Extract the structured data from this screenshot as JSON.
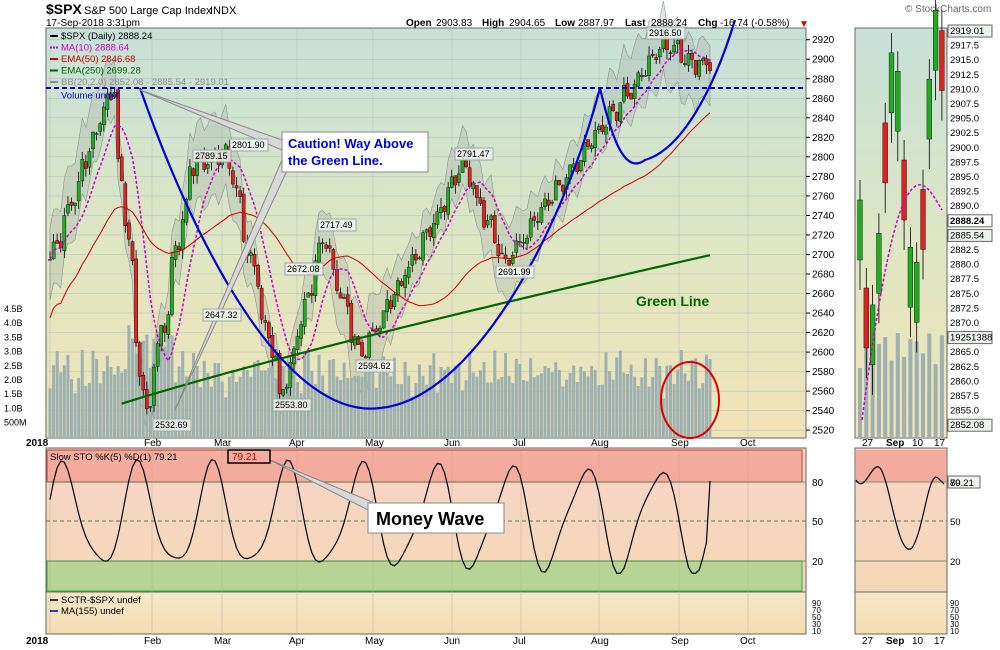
{
  "header": {
    "symbol": "$SPX",
    "name": "S&P 500 Large Cap Index",
    "exchange": "INDX",
    "watermark": "© StockCharts.com",
    "date": "17-Sep-2018 3:31pm",
    "open_label": "Open",
    "open": "2903.83",
    "high_label": "High",
    "high": "2904.65",
    "low_label": "Low",
    "low": "2887.97",
    "last_label": "Last",
    "last": "2888.24",
    "chg_label": "Chg",
    "chg": "-16.74 (-0.58%)"
  },
  "legend": [
    {
      "text": "$SPX (Daily) 2888.24",
      "color": "#000000"
    },
    {
      "text": "MA(10) 2888.64",
      "color": "#cc00cc"
    },
    {
      "text": "EMA(50) 2846.68",
      "color": "#cc0000"
    },
    {
      "text": "EMA(250) 2699.28",
      "color": "#006600"
    },
    {
      "text": "BB(20,2.0) 2852.08 - 2885.54 - 2919.01",
      "color": "#888888"
    },
    {
      "text": "Volume undef",
      "color": "#0000cc"
    }
  ],
  "annotations": {
    "caution_line1": "Caution! Way Above",
    "caution_line2": "the Green Line.",
    "green_line": "Green Line",
    "money_wave": "Money Wave"
  },
  "price_labels": [
    "2916.50",
    "2801.90",
    "2789.15",
    "2791.47",
    "2717.49",
    "2672.08",
    "2647.32",
    "2691.99",
    "2594.62",
    "2553.80",
    "2532.69"
  ],
  "price_axis": {
    "ticks": [
      "2920",
      "2900",
      "2880",
      "2860",
      "2840",
      "2820",
      "2800",
      "2780",
      "2760",
      "2740",
      "2720",
      "2700",
      "2680",
      "2660",
      "2640",
      "2620",
      "2600",
      "2580",
      "2560",
      "2540",
      "2520"
    ],
    "range": [
      2512,
      2932
    ]
  },
  "volume_axis": {
    "ticks": [
      "4.5B",
      "4.0B",
      "3.5B",
      "3.0B",
      "2.5B",
      "2.0B",
      "1.5B",
      "1.0B",
      "500M"
    ]
  },
  "x_axis": {
    "labels": [
      "2018",
      "Feb",
      "Mar",
      "Apr",
      "May",
      "Jun",
      "Jul",
      "Aug",
      "Sep",
      "Oct"
    ]
  },
  "stochastic": {
    "legend": "Slow STO %K(5) %D(1) 79.21",
    "value_box": "79.21",
    "ticks": [
      "80",
      "50",
      "20"
    ],
    "overbought": 80,
    "oversold": 20
  },
  "sctr": {
    "legend1": "SCTR-$SPX undef",
    "legend2": "MA(155) undef",
    "ticks": [
      "90",
      "70",
      "50",
      "30",
      "10"
    ]
  },
  "side_panel": {
    "price_ticks": [
      "2919.01",
      "2917.5",
      "2915.0",
      "2912.5",
      "2910.0",
      "2907.5",
      "2905.0",
      "2902.5",
      "2900.0",
      "2897.5",
      "2895.0",
      "2892.5",
      "2890.0",
      "2888.24",
      "2885.54",
      "2882.5",
      "2880.0",
      "2877.5",
      "2875.0",
      "2872.5",
      "2870.0",
      "19251388",
      "2865.0",
      "2862.5",
      "2860.0",
      "2857.5",
      "2855.0",
      "2852.08"
    ],
    "x_labels": [
      "27",
      "Sep",
      "10",
      "17"
    ],
    "stoch_box": "79.21",
    "stoch_ticks": [
      "80",
      "50",
      "20"
    ],
    "sctr_ticks": [
      "90",
      "70",
      "50",
      "30",
      "10"
    ]
  },
  "colors": {
    "up_candle": "#22aa22",
    "down_candle": "#dd2222",
    "ma10": "#cc00cc",
    "ema50": "#cc0000",
    "ema250": "#006600",
    "annotation_blue": "#0000dd",
    "volume": "#9fb0b0"
  },
  "chart_data": {
    "type": "line",
    "title": "$SPX S&P 500 Large Cap Index INDX",
    "x": [
      "2018-01-02",
      "2018-01-26",
      "2018-02-08",
      "2018-02-26",
      "2018-03-12",
      "2018-04-02",
      "2018-04-18",
      "2018-05-03",
      "2018-06-12",
      "2018-06-28",
      "2018-08-29",
      "2018-09-17"
    ],
    "series": [
      {
        "name": "$SPX (Daily) 2888.24",
        "values": [
          2695,
          2872,
          2532.69,
          2789.15,
          2801.9,
          2553.8,
          2717.49,
          2594.62,
          2791.47,
          2691.99,
          2916.5,
          2888.24
        ]
      }
    ],
    "ylim": [
      2512,
      2932
    ],
    "grid": true,
    "legend": "top-left"
  }
}
